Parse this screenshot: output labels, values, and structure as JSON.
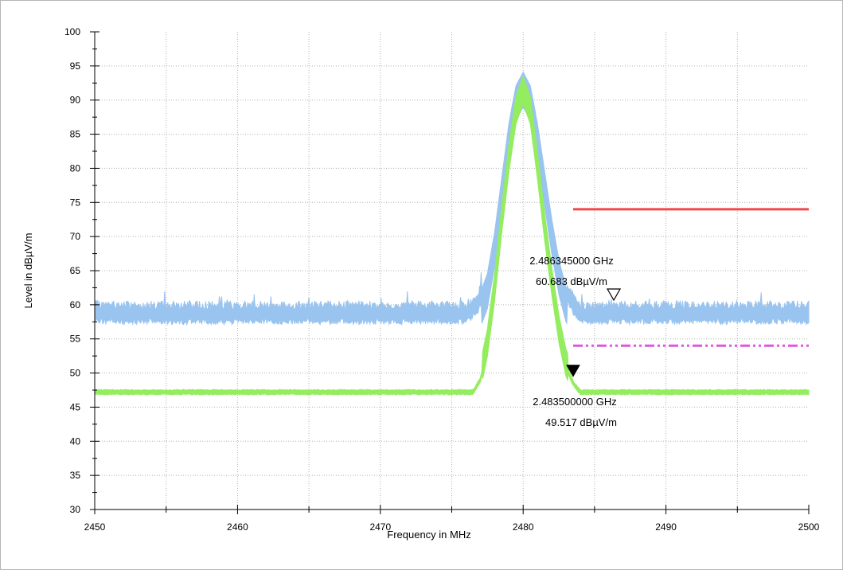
{
  "chart_data": {
    "type": "line",
    "title": "",
    "xlabel": "Frequency in MHz",
    "ylabel": "Level in dBµV/m",
    "xlim": [
      2450,
      2500
    ],
    "ylim": [
      30,
      100
    ],
    "x_ticks": [
      "2450",
      "2460",
      "2470",
      "2480",
      "2490",
      "2500"
    ],
    "y_ticks": [
      "30",
      "35",
      "40",
      "45",
      "50",
      "55",
      "60",
      "65",
      "70",
      "75",
      "80",
      "85",
      "90",
      "95",
      "100"
    ],
    "grid": true,
    "series": [
      {
        "color": "#99c4ef",
        "style": "noisy",
        "x": [
          2450,
          2476.0,
          2476.8,
          2477.5,
          2478.0,
          2478.5,
          2479.0,
          2479.5,
          2480.0,
          2480.5,
          2481.0,
          2481.5,
          2482.0,
          2482.5,
          2483.0,
          2483.5,
          2484.0,
          2500
        ],
        "y": [
          58.6,
          58.6,
          60.0,
          64.0,
          70.0,
          78.0,
          86.0,
          91.5,
          93.5,
          91.5,
          86.0,
          79.0,
          72.0,
          66.0,
          62.0,
          60.0,
          58.6,
          58.6
        ]
      },
      {
        "color": "#94ec5f",
        "style": "band",
        "x": [
          2450,
          2476.5,
          2477.0,
          2477.5,
          2478.0,
          2478.5,
          2479.0,
          2479.5,
          2480.0,
          2480.5,
          2481.0,
          2481.5,
          2482.0,
          2482.5,
          2483.0,
          2483.5,
          2484.0,
          2500
        ],
        "y": [
          47.2,
          47.2,
          49.0,
          54.0,
          62.0,
          72.0,
          81.0,
          88.0,
          91.0,
          88.0,
          80.0,
          71.0,
          63.0,
          56.0,
          51.0,
          48.5,
          47.2,
          47.2
        ]
      }
    ],
    "limit_lines": [
      {
        "color": "#f04848",
        "style": "solid",
        "x": [
          2483.5,
          2500
        ],
        "y": 74
      },
      {
        "color": "#e055e0",
        "style": "dash-dot",
        "x": [
          2483.5,
          2500
        ],
        "y": 54
      }
    ],
    "markers": [
      {
        "x": 2486.345,
        "y": 60.683,
        "style": "open",
        "freq_label": "2.486345000 GHz",
        "level_label": "60.683 dBµV/m"
      },
      {
        "x": 2483.5,
        "y": 49.517,
        "style": "filled",
        "freq_label": "2.483500000 GHz",
        "level_label": "49.517 dBµV/m"
      }
    ]
  }
}
